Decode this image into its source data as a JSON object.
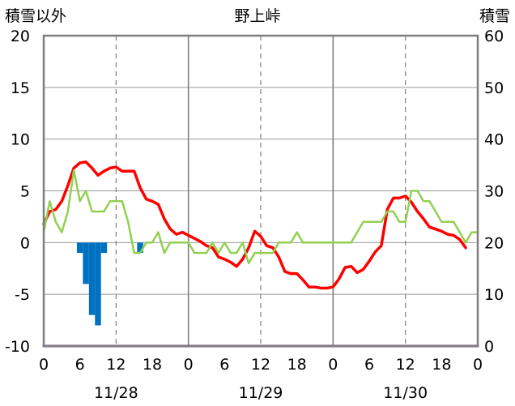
{
  "chart_data": {
    "type": "bar+line",
    "title": "野上峠",
    "ylabel_left": "積雪以外",
    "ylabel_right": "積雪",
    "ylim_left": [
      -10,
      20
    ],
    "ylim_right": [
      0,
      60
    ],
    "left_ticks": [
      -10,
      -5,
      0,
      5,
      10,
      15,
      20
    ],
    "right_ticks": [
      0,
      10,
      20,
      30,
      40,
      50,
      60
    ],
    "x_range_hours": [
      0,
      72
    ],
    "x_tick_labels": [
      "0",
      "6",
      "12",
      "18",
      "0",
      "6",
      "12",
      "18",
      "0",
      "6",
      "12",
      "18",
      "0"
    ],
    "date_labels": [
      {
        "hour": 12,
        "text": "11/28"
      },
      {
        "hour": 36,
        "text": "11/29"
      },
      {
        "hour": 60,
        "text": "11/30"
      }
    ],
    "series": [
      {
        "axis": "left",
        "color": "#ff0000",
        "points": [
          [
            0,
            1.8
          ],
          [
            1,
            3
          ],
          [
            2,
            3.2
          ],
          [
            3,
            4
          ],
          [
            4,
            5.5
          ],
          [
            5,
            7.2
          ],
          [
            6,
            7.7
          ],
          [
            7,
            7.8
          ],
          [
            8,
            7.2
          ],
          [
            9,
            6.5
          ],
          [
            10,
            6.9
          ],
          [
            11,
            7.2
          ],
          [
            12,
            7.3
          ],
          [
            13,
            6.9
          ],
          [
            14,
            6.9
          ],
          [
            15,
            6.9
          ],
          [
            16,
            5.3
          ],
          [
            17,
            4.2
          ],
          [
            18,
            4
          ],
          [
            19,
            3.7
          ],
          [
            20,
            2.3
          ],
          [
            21,
            1.3
          ],
          [
            22,
            0.8
          ],
          [
            23,
            1
          ],
          [
            24,
            0.7
          ],
          [
            25,
            0.4
          ],
          [
            26,
            0.1
          ],
          [
            27,
            -0.3
          ],
          [
            28,
            -0.5
          ],
          [
            29,
            -1.4
          ],
          [
            30,
            -1.6
          ],
          [
            31,
            -1.9
          ],
          [
            32,
            -2.3
          ],
          [
            33,
            -1.6
          ],
          [
            34,
            -0.5
          ],
          [
            35,
            1.1
          ],
          [
            36,
            0.6
          ],
          [
            37,
            -0.3
          ],
          [
            38,
            -0.5
          ],
          [
            39,
            -1.4
          ],
          [
            40,
            -2.8
          ],
          [
            41,
            -3
          ],
          [
            42,
            -3
          ],
          [
            43,
            -3.6
          ],
          [
            44,
            -4.3
          ],
          [
            45,
            -4.3
          ],
          [
            46,
            -4.4
          ],
          [
            47,
            -4.4
          ],
          [
            48,
            -4.3
          ],
          [
            49,
            -3.5
          ],
          [
            50,
            -2.4
          ],
          [
            51,
            -2.3
          ],
          [
            52,
            -2.9
          ],
          [
            53,
            -2.6
          ],
          [
            54,
            -1.8
          ],
          [
            55,
            -0.9
          ],
          [
            56,
            -0.3
          ],
          [
            57,
            3.2
          ],
          [
            58,
            4.3
          ],
          [
            59,
            4.3
          ],
          [
            60,
            4.5
          ],
          [
            61,
            3.9
          ],
          [
            62,
            3
          ],
          [
            63,
            2.3
          ],
          [
            64,
            1.5
          ],
          [
            65,
            1.3
          ],
          [
            66,
            1.1
          ],
          [
            67,
            0.8
          ],
          [
            68,
            0.7
          ],
          [
            69,
            0.3
          ],
          [
            70,
            -0.5
          ]
        ]
      },
      {
        "axis": "left",
        "color": "#92d050",
        "points": [
          [
            0,
            1
          ],
          [
            1,
            4
          ],
          [
            2,
            2
          ],
          [
            3,
            1
          ],
          [
            4,
            3
          ],
          [
            5,
            7
          ],
          [
            6,
            4
          ],
          [
            7,
            5
          ],
          [
            8,
            3
          ],
          [
            9,
            3
          ],
          [
            10,
            3
          ],
          [
            11,
            4
          ],
          [
            12,
            4
          ],
          [
            13,
            4
          ],
          [
            14,
            2
          ],
          [
            15,
            -1
          ],
          [
            16,
            -1
          ],
          [
            17,
            0
          ],
          [
            18,
            0
          ],
          [
            19,
            1
          ],
          [
            20,
            -1
          ],
          [
            21,
            0
          ],
          [
            22,
            0
          ],
          [
            23,
            0
          ],
          [
            24,
            0
          ],
          [
            25,
            -1
          ],
          [
            26,
            -1
          ],
          [
            27,
            -1
          ],
          [
            28,
            0
          ],
          [
            29,
            -1
          ],
          [
            30,
            0
          ],
          [
            31,
            -1
          ],
          [
            32,
            -1
          ],
          [
            33,
            0
          ],
          [
            34,
            -2
          ],
          [
            35,
            -1
          ],
          [
            36,
            -1
          ],
          [
            37,
            -1
          ],
          [
            38,
            -1
          ],
          [
            39,
            0
          ],
          [
            40,
            0
          ],
          [
            41,
            0
          ],
          [
            42,
            1
          ],
          [
            43,
            0
          ],
          [
            44,
            0
          ],
          [
            45,
            0
          ],
          [
            46,
            0
          ],
          [
            47,
            0
          ],
          [
            48,
            0
          ],
          [
            49,
            0
          ],
          [
            50,
            0
          ],
          [
            51,
            0
          ],
          [
            52,
            1
          ],
          [
            53,
            2
          ],
          [
            54,
            2
          ],
          [
            55,
            2
          ],
          [
            56,
            2
          ],
          [
            57,
            3
          ],
          [
            58,
            3
          ],
          [
            59,
            2
          ],
          [
            60,
            2
          ],
          [
            61,
            5
          ],
          [
            62,
            5
          ],
          [
            63,
            4
          ],
          [
            64,
            4
          ],
          [
            65,
            3
          ],
          [
            66,
            2
          ],
          [
            67,
            2
          ],
          [
            68,
            2
          ],
          [
            69,
            1
          ],
          [
            70,
            0
          ],
          [
            71,
            1
          ],
          [
            72,
            1
          ]
        ]
      },
      {
        "axis": "left",
        "color": "#7030a0",
        "points": [
          [
            0,
            -10
          ],
          [
            72,
            -10
          ]
        ]
      }
    ],
    "bars": {
      "axis": "left",
      "color": "#0070c0",
      "items": [
        [
          6,
          -1
        ],
        [
          7,
          -4
        ],
        [
          8,
          -7
        ],
        [
          9,
          -8
        ],
        [
          10,
          -1
        ],
        [
          16,
          -1
        ]
      ]
    }
  }
}
